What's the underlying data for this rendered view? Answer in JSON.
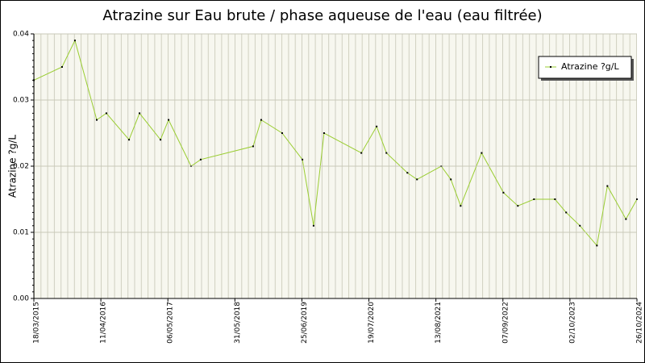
{
  "chart_data": {
    "type": "line",
    "title": "Atrazine sur Eau brute / phase aqueuse de l'eau (eau filtrée)",
    "y_label": "Atrazine ?g/L",
    "x": [
      "18/03/2015",
      "29/08/2015",
      "12/11/2015",
      "18/03/2016",
      "13/05/2016",
      "22/09/2016",
      "22/11/2016",
      "24/03/2017",
      "10/05/2017",
      "18/09/2017",
      "13/11/2017",
      "14/09/2018",
      "31/10/2018",
      "02/03/2019",
      "28/06/2019",
      "01/09/2019",
      "01/11/2019",
      "05/06/2020",
      "02/09/2020",
      "29/10/2020",
      "28/02/2021",
      "25/04/2021",
      "13/09/2021",
      "08/11/2021",
      "04/01/2022",
      "06/05/2022",
      "10/09/2022",
      "03/12/2022",
      "07/03/2023",
      "07/07/2023",
      "10/09/2023",
      "29/11/2023",
      "07/03/2024",
      "07/05/2024",
      "23/08/2024",
      "26/10/2024"
    ],
    "series": [
      {
        "name": "Atrazine ?g/L",
        "color": "#9acd32",
        "values": [
          0.033,
          0.035,
          0.039,
          0.027,
          0.028,
          0.024,
          0.028,
          0.024,
          0.027,
          0.02,
          0.021,
          0.023,
          0.027,
          0.025,
          0.021,
          0.011,
          0.025,
          0.022,
          0.026,
          0.022,
          0.019,
          0.018,
          0.02,
          0.018,
          0.014,
          0.022,
          0.016,
          0.014,
          0.015,
          0.015,
          0.013,
          0.011,
          0.008,
          0.017,
          0.012,
          0.015
        ]
      }
    ],
    "xlim": [
      "18/03/2015",
      "26/10/2024"
    ],
    "xticks": [
      "18/03/2015",
      "11/04/2016",
      "06/05/2017",
      "31/05/2018",
      "25/06/2019",
      "19/07/2020",
      "13/08/2021",
      "07/09/2022",
      "02/10/2023",
      "26/10/2024"
    ],
    "ylim": [
      0,
      0.04
    ],
    "yticks": [
      {
        "value": 0,
        "label": "0.00"
      },
      0.01,
      0.02,
      0.03,
      0.04
    ],
    "grid": true,
    "legend": "upper right"
  }
}
